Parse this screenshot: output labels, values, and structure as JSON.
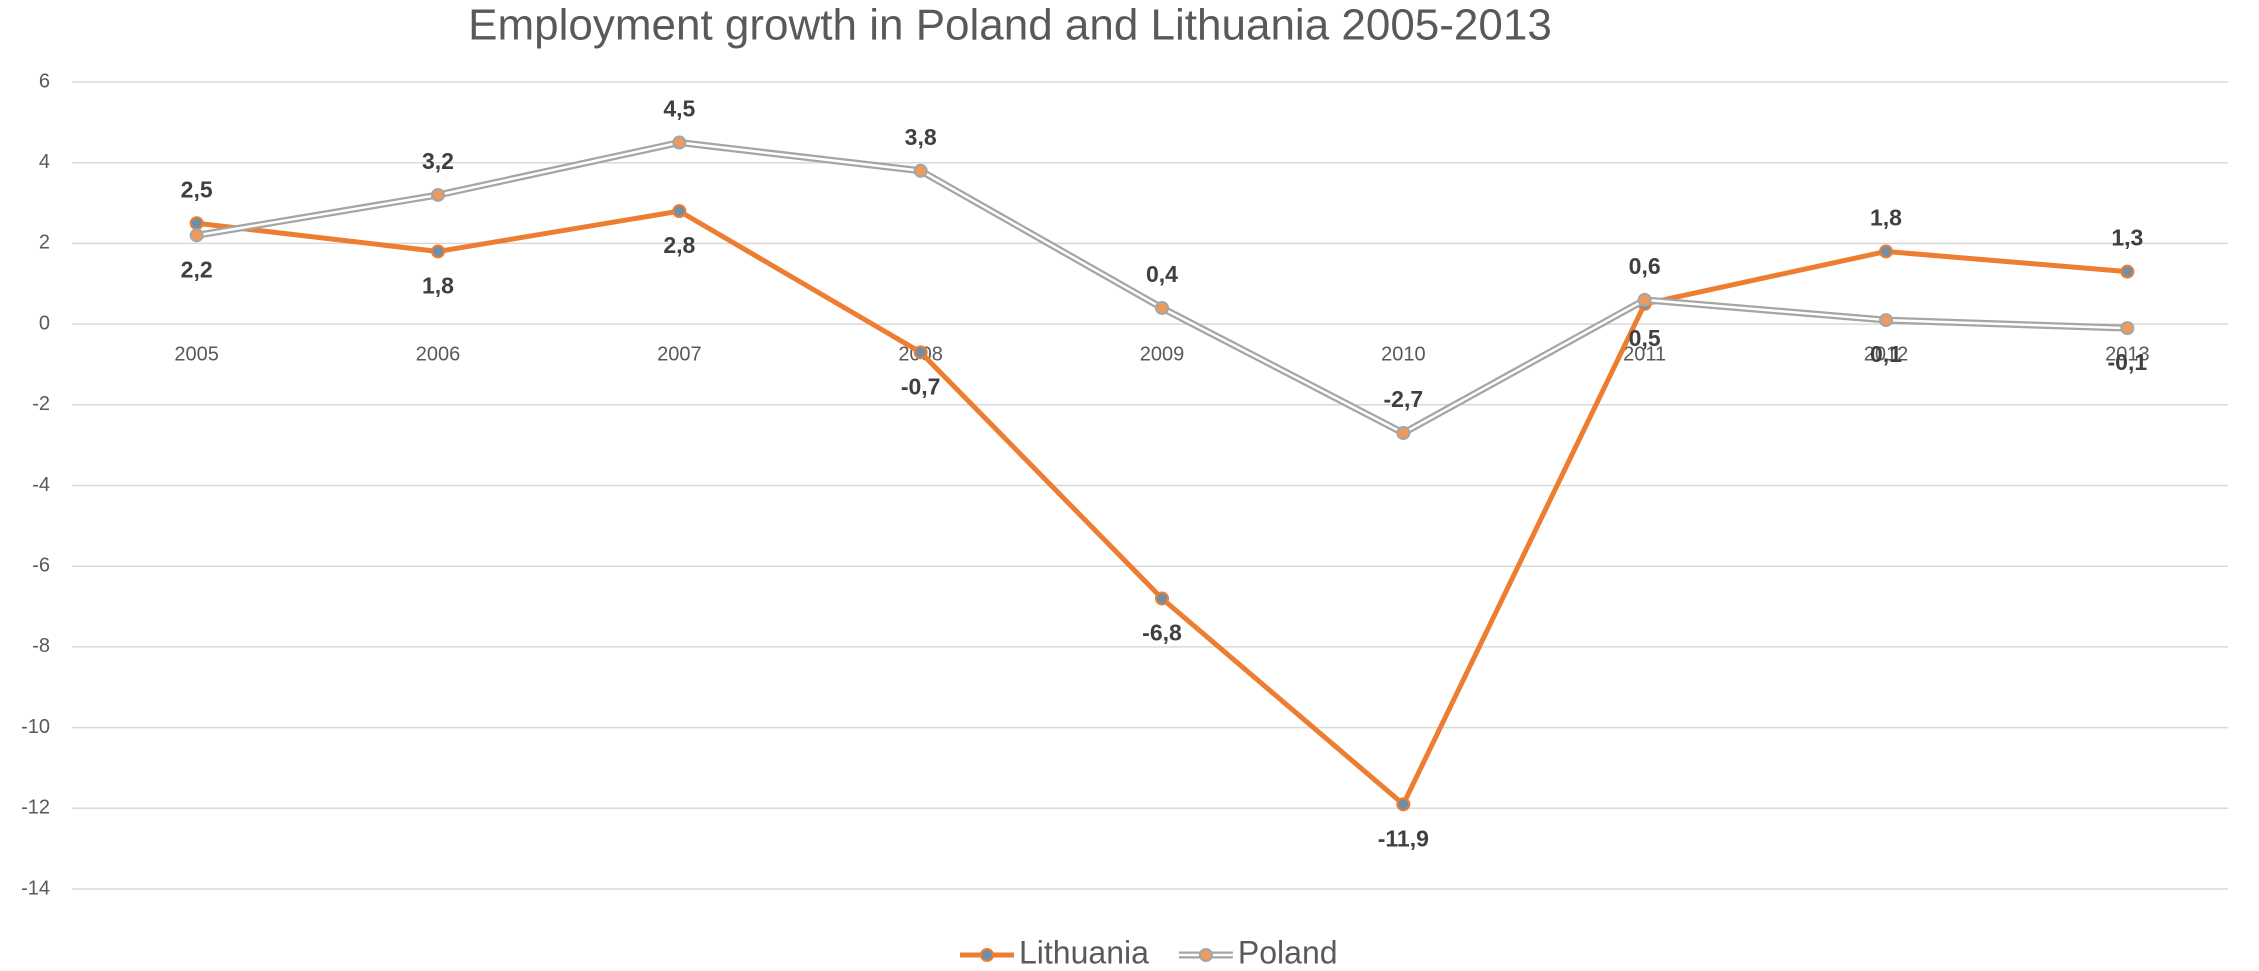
{
  "chart_data": {
    "type": "line",
    "title": "Employment growth in Poland and Lithuania 2005-2013",
    "categories": [
      "2005",
      "2006",
      "2007",
      "2008",
      "2009",
      "2010",
      "2011",
      "2012",
      "2013"
    ],
    "series": [
      {
        "name": "Lithuania",
        "color": "#ed7d31",
        "marker_color": "#6f8fa8",
        "style": "solid",
        "values": [
          2.5,
          1.8,
          2.8,
          -0.7,
          -6.8,
          -11.9,
          0.5,
          1.8,
          1.3
        ],
        "value_labels": [
          "2,5",
          "1,8",
          "2,8",
          "-0,7",
          "-6,8",
          "-11,9",
          "0,5",
          "1,8",
          "1,3"
        ]
      },
      {
        "name": "Poland",
        "color": "#a5a5a5",
        "marker_color": "#ed9a5f",
        "style": "double",
        "values": [
          2.2,
          3.2,
          4.5,
          3.8,
          0.4,
          -2.7,
          0.6,
          0.1,
          -0.1
        ],
        "value_labels": [
          "2,2",
          "3,2",
          "4,5",
          "3,8",
          "0,4",
          "-2,7",
          "0,6",
          "0,1",
          "-0,1"
        ]
      }
    ],
    "ylim": [
      -14,
      6
    ],
    "yticks": [
      -14,
      -12,
      -10,
      -8,
      -6,
      -4,
      -2,
      0,
      2,
      4,
      6
    ],
    "grid": true,
    "legend": "bottom"
  }
}
